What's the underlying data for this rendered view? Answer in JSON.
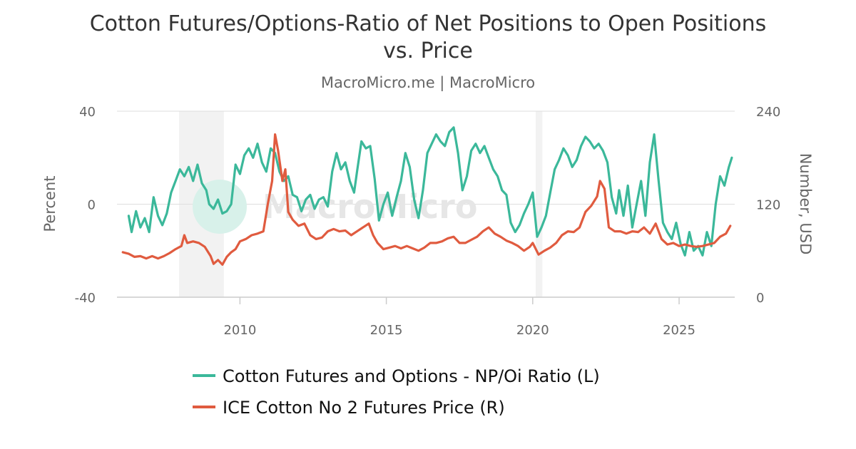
{
  "chart_data": {
    "type": "line",
    "title_line1": "Cotton Futures/Options-Ratio of Net Positions to Open Positions",
    "title_line2": "vs. Price",
    "subtitle": "MacroMicro.me | MacroMicro",
    "watermark": "MacroMicro",
    "y_left": {
      "label": "Percent",
      "min": -40,
      "max": 40,
      "ticks": [
        -40,
        0,
        40
      ]
    },
    "y_right": {
      "label": "Number, USD",
      "min": 0,
      "max": 240,
      "ticks": [
        0,
        120,
        240
      ]
    },
    "x_axis": {
      "min": 2005.8,
      "max": 2026.9,
      "ticks": [
        2010,
        2015,
        2020,
        2025
      ]
    },
    "shaded_periods": [
      {
        "start": 2007.92,
        "end": 2009.45
      },
      {
        "start": 2020.1,
        "end": 2020.33
      }
    ],
    "series": [
      {
        "name": "Cotton Futures and Options - NP/Oi Ratio (L)",
        "axis": "left",
        "color": "#3bb89a",
        "points": [
          [
            2006.2,
            -5
          ],
          [
            2006.3,
            -12
          ],
          [
            2006.45,
            -3
          ],
          [
            2006.6,
            -10
          ],
          [
            2006.75,
            -6
          ],
          [
            2006.9,
            -12
          ],
          [
            2007.05,
            3
          ],
          [
            2007.2,
            -5
          ],
          [
            2007.35,
            -9
          ],
          [
            2007.5,
            -4
          ],
          [
            2007.65,
            5
          ],
          [
            2007.8,
            10
          ],
          [
            2007.95,
            15
          ],
          [
            2008.1,
            12
          ],
          [
            2008.25,
            16
          ],
          [
            2008.4,
            10
          ],
          [
            2008.55,
            17
          ],
          [
            2008.7,
            9
          ],
          [
            2008.85,
            6
          ],
          [
            2008.95,
            0
          ],
          [
            2009.1,
            -2
          ],
          [
            2009.25,
            2
          ],
          [
            2009.4,
            -4
          ],
          [
            2009.55,
            -3
          ],
          [
            2009.7,
            0
          ],
          [
            2009.85,
            17
          ],
          [
            2010.0,
            13
          ],
          [
            2010.15,
            21
          ],
          [
            2010.3,
            24
          ],
          [
            2010.45,
            20
          ],
          [
            2010.6,
            26
          ],
          [
            2010.75,
            18
          ],
          [
            2010.9,
            14
          ],
          [
            2011.05,
            24
          ],
          [
            2011.2,
            22
          ],
          [
            2011.35,
            14
          ],
          [
            2011.5,
            10
          ],
          [
            2011.65,
            12
          ],
          [
            2011.8,
            4
          ],
          [
            2011.95,
            3
          ],
          [
            2012.1,
            -3
          ],
          [
            2012.25,
            2
          ],
          [
            2012.4,
            4
          ],
          [
            2012.55,
            -2
          ],
          [
            2012.7,
            2
          ],
          [
            2012.85,
            3
          ],
          [
            2013.0,
            -1
          ],
          [
            2013.15,
            14
          ],
          [
            2013.3,
            22
          ],
          [
            2013.45,
            15
          ],
          [
            2013.6,
            18
          ],
          [
            2013.75,
            10
          ],
          [
            2013.9,
            5
          ],
          [
            2014.0,
            14
          ],
          [
            2014.15,
            27
          ],
          [
            2014.3,
            24
          ],
          [
            2014.45,
            25
          ],
          [
            2014.6,
            11
          ],
          [
            2014.75,
            -7
          ],
          [
            2014.9,
            0
          ],
          [
            2015.05,
            5
          ],
          [
            2015.2,
            -5
          ],
          [
            2015.35,
            3
          ],
          [
            2015.5,
            10
          ],
          [
            2015.65,
            22
          ],
          [
            2015.8,
            16
          ],
          [
            2015.95,
            2
          ],
          [
            2016.1,
            -6
          ],
          [
            2016.25,
            6
          ],
          [
            2016.4,
            22
          ],
          [
            2016.55,
            26
          ],
          [
            2016.7,
            30
          ],
          [
            2016.85,
            27
          ],
          [
            2017.0,
            25
          ],
          [
            2017.15,
            31
          ],
          [
            2017.3,
            33
          ],
          [
            2017.45,
            22
          ],
          [
            2017.6,
            6
          ],
          [
            2017.75,
            12
          ],
          [
            2017.9,
            23
          ],
          [
            2018.05,
            26
          ],
          [
            2018.2,
            22
          ],
          [
            2018.35,
            25
          ],
          [
            2018.5,
            20
          ],
          [
            2018.65,
            15
          ],
          [
            2018.8,
            12
          ],
          [
            2018.95,
            6
          ],
          [
            2019.1,
            4
          ],
          [
            2019.25,
            -8
          ],
          [
            2019.4,
            -12
          ],
          [
            2019.55,
            -9
          ],
          [
            2019.7,
            -4
          ],
          [
            2019.85,
            0
          ],
          [
            2020.0,
            5
          ],
          [
            2020.15,
            -14
          ],
          [
            2020.3,
            -10
          ],
          [
            2020.45,
            -5
          ],
          [
            2020.6,
            5
          ],
          [
            2020.75,
            15
          ],
          [
            2020.9,
            19
          ],
          [
            2021.05,
            24
          ],
          [
            2021.2,
            21
          ],
          [
            2021.35,
            16
          ],
          [
            2021.5,
            19
          ],
          [
            2021.65,
            25
          ],
          [
            2021.8,
            29
          ],
          [
            2021.95,
            27
          ],
          [
            2022.1,
            24
          ],
          [
            2022.25,
            26
          ],
          [
            2022.4,
            23
          ],
          [
            2022.55,
            18
          ],
          [
            2022.7,
            3
          ],
          [
            2022.85,
            -4
          ],
          [
            2022.95,
            6
          ],
          [
            2023.1,
            -5
          ],
          [
            2023.25,
            8
          ],
          [
            2023.4,
            -10
          ],
          [
            2023.55,
            0
          ],
          [
            2023.7,
            10
          ],
          [
            2023.85,
            -5
          ],
          [
            2024.0,
            18
          ],
          [
            2024.15,
            30
          ],
          [
            2024.3,
            10
          ],
          [
            2024.45,
            -8
          ],
          [
            2024.6,
            -12
          ],
          [
            2024.75,
            -15
          ],
          [
            2024.9,
            -8
          ],
          [
            2025.05,
            -17
          ],
          [
            2025.2,
            -22
          ],
          [
            2025.35,
            -12
          ],
          [
            2025.5,
            -20
          ],
          [
            2025.65,
            -18
          ],
          [
            2025.8,
            -22
          ],
          [
            2025.95,
            -12
          ],
          [
            2026.1,
            -18
          ],
          [
            2026.25,
            0
          ],
          [
            2026.4,
            12
          ],
          [
            2026.55,
            8
          ],
          [
            2026.7,
            16
          ],
          [
            2026.8,
            20
          ]
        ]
      },
      {
        "name": "ICE Cotton No 2 Futures Price (R)",
        "axis": "right",
        "color": "#e05b3f",
        "points": [
          [
            2006.0,
            58
          ],
          [
            2006.2,
            56
          ],
          [
            2006.4,
            52
          ],
          [
            2006.6,
            53
          ],
          [
            2006.8,
            50
          ],
          [
            2007.0,
            53
          ],
          [
            2007.2,
            50
          ],
          [
            2007.4,
            53
          ],
          [
            2007.6,
            57
          ],
          [
            2007.8,
            62
          ],
          [
            2008.0,
            66
          ],
          [
            2008.1,
            80
          ],
          [
            2008.2,
            70
          ],
          [
            2008.4,
            72
          ],
          [
            2008.6,
            70
          ],
          [
            2008.8,
            65
          ],
          [
            2009.0,
            53
          ],
          [
            2009.1,
            43
          ],
          [
            2009.25,
            48
          ],
          [
            2009.4,
            42
          ],
          [
            2009.55,
            52
          ],
          [
            2009.7,
            58
          ],
          [
            2009.85,
            62
          ],
          [
            2010.0,
            72
          ],
          [
            2010.2,
            75
          ],
          [
            2010.4,
            80
          ],
          [
            2010.6,
            82
          ],
          [
            2010.8,
            85
          ],
          [
            2010.95,
            120
          ],
          [
            2011.1,
            150
          ],
          [
            2011.2,
            210
          ],
          [
            2011.3,
            190
          ],
          [
            2011.45,
            150
          ],
          [
            2011.55,
            165
          ],
          [
            2011.65,
            110
          ],
          [
            2011.8,
            100
          ],
          [
            2012.0,
            92
          ],
          [
            2012.2,
            95
          ],
          [
            2012.4,
            80
          ],
          [
            2012.6,
            75
          ],
          [
            2012.8,
            77
          ],
          [
            2013.0,
            85
          ],
          [
            2013.2,
            88
          ],
          [
            2013.4,
            85
          ],
          [
            2013.6,
            86
          ],
          [
            2013.8,
            80
          ],
          [
            2014.0,
            85
          ],
          [
            2014.2,
            90
          ],
          [
            2014.4,
            95
          ],
          [
            2014.55,
            80
          ],
          [
            2014.7,
            70
          ],
          [
            2014.9,
            62
          ],
          [
            2015.1,
            64
          ],
          [
            2015.3,
            66
          ],
          [
            2015.5,
            63
          ],
          [
            2015.7,
            66
          ],
          [
            2015.9,
            63
          ],
          [
            2016.1,
            60
          ],
          [
            2016.3,
            64
          ],
          [
            2016.5,
            70
          ],
          [
            2016.7,
            70
          ],
          [
            2016.9,
            72
          ],
          [
            2017.1,
            76
          ],
          [
            2017.3,
            78
          ],
          [
            2017.5,
            70
          ],
          [
            2017.7,
            70
          ],
          [
            2017.9,
            74
          ],
          [
            2018.1,
            78
          ],
          [
            2018.3,
            85
          ],
          [
            2018.5,
            90
          ],
          [
            2018.7,
            82
          ],
          [
            2018.9,
            78
          ],
          [
            2019.1,
            73
          ],
          [
            2019.3,
            70
          ],
          [
            2019.5,
            66
          ],
          [
            2019.7,
            60
          ],
          [
            2019.9,
            65
          ],
          [
            2020.0,
            70
          ],
          [
            2020.2,
            55
          ],
          [
            2020.4,
            60
          ],
          [
            2020.6,
            64
          ],
          [
            2020.8,
            70
          ],
          [
            2021.0,
            80
          ],
          [
            2021.2,
            85
          ],
          [
            2021.4,
            84
          ],
          [
            2021.6,
            90
          ],
          [
            2021.8,
            110
          ],
          [
            2022.0,
            118
          ],
          [
            2022.2,
            130
          ],
          [
            2022.3,
            150
          ],
          [
            2022.45,
            140
          ],
          [
            2022.6,
            90
          ],
          [
            2022.8,
            85
          ],
          [
            2023.0,
            85
          ],
          [
            2023.2,
            82
          ],
          [
            2023.4,
            85
          ],
          [
            2023.6,
            84
          ],
          [
            2023.8,
            90
          ],
          [
            2024.0,
            82
          ],
          [
            2024.2,
            95
          ],
          [
            2024.4,
            75
          ],
          [
            2024.6,
            68
          ],
          [
            2024.8,
            70
          ],
          [
            2025.0,
            66
          ],
          [
            2025.2,
            68
          ],
          [
            2025.4,
            66
          ],
          [
            2025.6,
            65
          ],
          [
            2025.8,
            66
          ],
          [
            2026.0,
            68
          ],
          [
            2026.2,
            70
          ],
          [
            2026.4,
            78
          ],
          [
            2026.6,
            82
          ],
          [
            2026.75,
            92
          ]
        ]
      }
    ],
    "legend_position": "bottom"
  }
}
